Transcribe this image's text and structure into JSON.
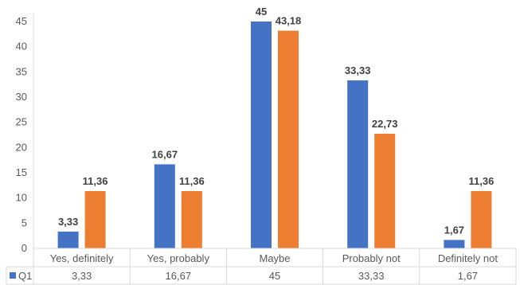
{
  "chart_data": {
    "type": "bar",
    "title": "",
    "xlabel": "",
    "ylabel": "",
    "ylim": [
      0,
      45
    ],
    "ytick_step": 5,
    "grid": false,
    "legend": "data table",
    "categories": [
      "Yes, definitely",
      "Yes, probably",
      "Maybe",
      "Probably not",
      "Definitely not"
    ],
    "series": [
      {
        "name": "Q1",
        "color": "#4472C4",
        "values": [
          3.33,
          16.67,
          45,
          33.33,
          1.67
        ],
        "labels": [
          "3,33",
          "16,67",
          "45",
          "33,33",
          "1,67"
        ]
      },
      {
        "color": "#ED7D31",
        "values": [
          11.36,
          11.36,
          43.18,
          22.73,
          11.36
        ],
        "labels": [
          "11,36",
          "11,36",
          "43,18",
          "22,73",
          "11,36"
        ]
      }
    ],
    "table": {
      "row_label": "Q1",
      "cells": [
        "3,33",
        "16,67",
        "45",
        "33,33",
        "1,67"
      ]
    }
  }
}
